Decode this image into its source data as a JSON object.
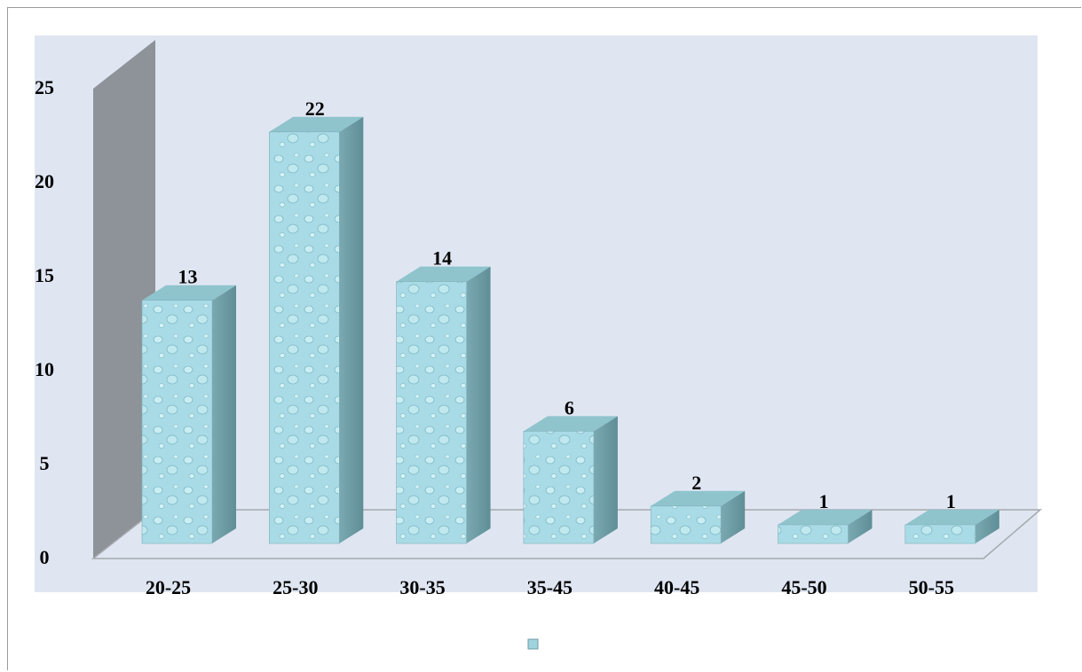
{
  "chart_data": {
    "type": "bar",
    "categories": [
      "20-25",
      "25-30",
      "30-35",
      "35-45",
      "40-45",
      "45-50",
      "50-55"
    ],
    "values": [
      13,
      22,
      14,
      6,
      2,
      1,
      1
    ],
    "yticks": [
      "0",
      "5",
      "10",
      "15",
      "20",
      "25"
    ],
    "ylim": [
      0,
      25
    ],
    "grid": false,
    "legend": "bottom-center",
    "colors": {
      "plot_bg": "#dfe6f2",
      "bar_front": "#a9dbe6",
      "bar_side": "#6f9ea6",
      "bar_top": "#8fc4cd",
      "back_wall": "#8e9299",
      "floor": "#dfe6f2"
    }
  }
}
